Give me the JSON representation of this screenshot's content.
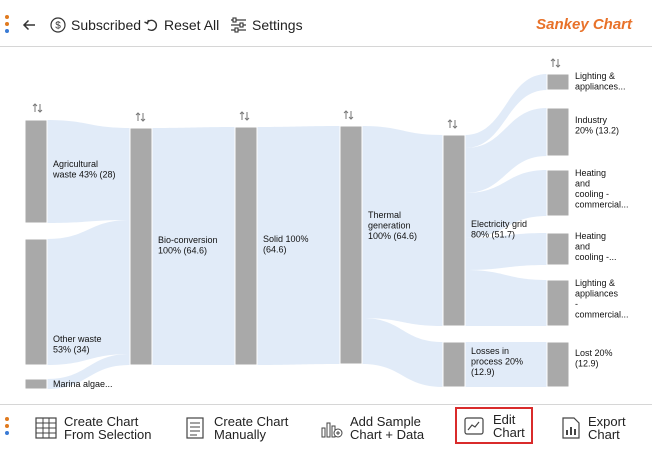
{
  "toolbar": {
    "subscribed_label": "Subscribed",
    "reset_label": "Reset All",
    "settings_label": "Settings",
    "brand": "Sankey Chart"
  },
  "bottombar": {
    "create_selection_line1": "Create Chart",
    "create_selection_line2": "From Selection",
    "create_manual_line1": "Create Chart",
    "create_manual_line2": "Manually",
    "add_sample_line1": "Add Sample",
    "add_sample_line2": "Chart + Data",
    "edit_line1": "Edit",
    "edit_line2": "Chart",
    "export_line1": "Export",
    "export_line2": "Chart"
  },
  "colors": {
    "accent": "#e8722a",
    "node": "#a9a9a9",
    "link": "#dce8f7",
    "highlight_border": "#d92b2b"
  },
  "chart_data": {
    "type": "sankey",
    "title": "",
    "nodes": [
      {
        "id": "agri",
        "label_lines": [
          "Agricultural",
          "waste 43% (28)"
        ],
        "value": 28,
        "column": 0
      },
      {
        "id": "other",
        "label_lines": [
          "Other waste",
          "53% (34)"
        ],
        "value": 34,
        "column": 0
      },
      {
        "id": "marina",
        "label_lines": [
          "Marina algae..."
        ],
        "value": 2.6,
        "column": 0
      },
      {
        "id": "bio",
        "label_lines": [
          "Bio-conversion",
          "100% (64.6)"
        ],
        "value": 64.6,
        "column": 1
      },
      {
        "id": "solid",
        "label_lines": [
          "Solid 100%",
          "(64.6)"
        ],
        "value": 64.6,
        "column": 2
      },
      {
        "id": "thermal",
        "label_lines": [
          "Thermal",
          "generation",
          "100% (64.6)"
        ],
        "value": 64.6,
        "column": 3
      },
      {
        "id": "grid",
        "label_lines": [
          "Electricity grid",
          "80% (51.7)"
        ],
        "value": 51.7,
        "column": 4
      },
      {
        "id": "losses",
        "label_lines": [
          "Losses in",
          "process 20%",
          "(12.9)"
        ],
        "value": 12.9,
        "column": 4
      },
      {
        "id": "lighting1",
        "label_lines": [
          "Lighting &",
          "appliances..."
        ],
        "column": 5
      },
      {
        "id": "industry",
        "label_lines": [
          "Industry",
          "20% (13.2)"
        ],
        "value": 13.2,
        "column": 5
      },
      {
        "id": "heat1",
        "label_lines": [
          "Heating",
          "and",
          "cooling -",
          "commercial..."
        ],
        "column": 5
      },
      {
        "id": "heat2",
        "label_lines": [
          "Heating",
          "and",
          "cooling -..."
        ],
        "column": 5
      },
      {
        "id": "lighting2",
        "label_lines": [
          "Lighting &",
          "appliances",
          "-",
          "commercial..."
        ],
        "column": 5
      },
      {
        "id": "lost",
        "label_lines": [
          "Lost 20%",
          "(12.9)"
        ],
        "value": 12.9,
        "column": 5
      }
    ],
    "links": [
      {
        "source": "agri",
        "target": "bio"
      },
      {
        "source": "other",
        "target": "bio"
      },
      {
        "source": "marina",
        "target": "bio"
      },
      {
        "source": "bio",
        "target": "solid"
      },
      {
        "source": "solid",
        "target": "thermal"
      },
      {
        "source": "thermal",
        "target": "grid"
      },
      {
        "source": "thermal",
        "target": "losses"
      },
      {
        "source": "grid",
        "target": "lighting1"
      },
      {
        "source": "grid",
        "target": "industry"
      },
      {
        "source": "grid",
        "target": "heat1"
      },
      {
        "source": "grid",
        "target": "heat2"
      },
      {
        "source": "grid",
        "target": "lighting2"
      },
      {
        "source": "losses",
        "target": "lost"
      }
    ]
  }
}
